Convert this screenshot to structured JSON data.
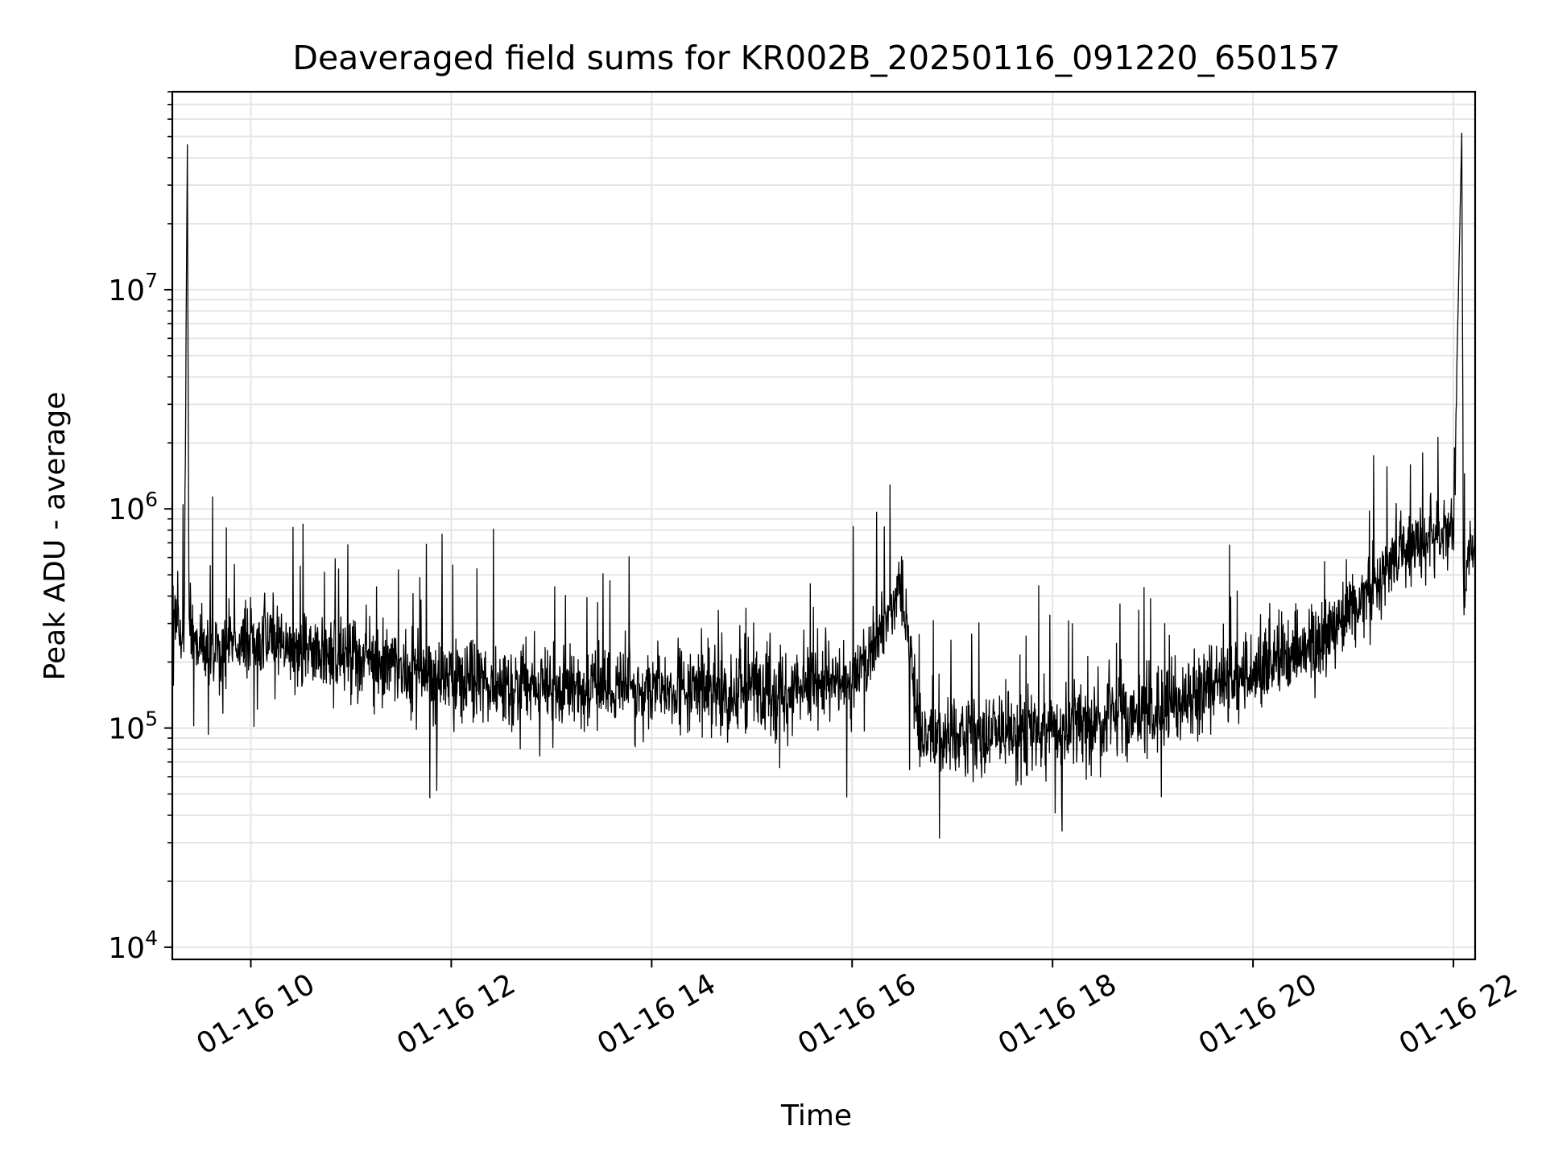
{
  "chart_data": {
    "type": "line",
    "title": "Deaveraged field sums for KR002B_20250116_091220_650157",
    "xlabel": "Time",
    "ylabel": "Peak ADU - average",
    "yscale": "log",
    "grid": true,
    "line_color": "#000000",
    "grid_color": "#e5e5e5",
    "xlim": [
      "2025-01-16 09:13",
      "2025-01-16 22:13"
    ],
    "ylim": [
      8800,
      80000000
    ],
    "x_ticks": [
      {
        "value": "2025-01-16 10:00",
        "label": "01-16 10"
      },
      {
        "value": "2025-01-16 12:00",
        "label": "01-16 12"
      },
      {
        "value": "2025-01-16 14:00",
        "label": "01-16 14"
      },
      {
        "value": "2025-01-16 16:00",
        "label": "01-16 16"
      },
      {
        "value": "2025-01-16 18:00",
        "label": "01-16 18"
      },
      {
        "value": "2025-01-16 20:00",
        "label": "01-16 20"
      },
      {
        "value": "2025-01-16 22:00",
        "label": "01-16 22"
      }
    ],
    "y_ticks": [
      {
        "value": 10000,
        "base": "10",
        "exp": "4"
      },
      {
        "value": 100000,
        "base": "10",
        "exp": "5"
      },
      {
        "value": 1000000,
        "base": "10",
        "exp": "6"
      },
      {
        "value": 10000000,
        "base": "10",
        "exp": "7"
      }
    ],
    "series": [
      {
        "x": [
          "2025-01-16 09:13",
          "2025-01-16 09:20",
          "2025-01-16 09:22",
          "2025-01-16 09:23",
          "2025-01-16 09:30",
          "2025-01-16 10:00",
          "2025-01-16 11:00",
          "2025-01-16 12:00",
          "2025-01-16 13:00",
          "2025-01-16 14:00",
          "2025-01-16 15:00",
          "2025-01-16 16:00",
          "2025-01-16 16:30",
          "2025-01-16 16:40",
          "2025-01-16 17:00",
          "2025-01-16 17:30",
          "2025-01-16 18:00",
          "2025-01-16 19:00",
          "2025-01-16 20:00",
          "2025-01-16 20:40",
          "2025-01-16 21:00",
          "2025-01-16 21:30",
          "2025-01-16 22:00",
          "2025-01-16 22:05",
          "2025-01-16 22:06",
          "2025-01-16 22:07",
          "2025-01-16 22:13"
        ],
        "y": [
          300000,
          250000,
          46000000,
          300000,
          220000,
          260000,
          210000,
          170000,
          150000,
          150000,
          150000,
          160000,
          450000,
          100000,
          90000,
          95000,
          100000,
          120000,
          180000,
          250000,
          350000,
          700000,
          800000,
          52000000,
          500000,
          600000,
          700000
        ]
      }
    ]
  }
}
